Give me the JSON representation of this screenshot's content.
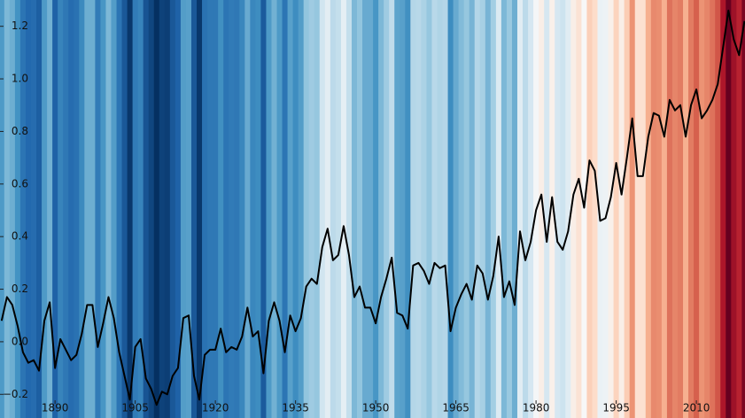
{
  "chart_data": {
    "type": "line",
    "stripes": true,
    "x": [
      1880,
      1881,
      1882,
      1883,
      1884,
      1885,
      1886,
      1887,
      1888,
      1889,
      1890,
      1891,
      1892,
      1893,
      1894,
      1895,
      1896,
      1897,
      1898,
      1899,
      1900,
      1901,
      1902,
      1903,
      1904,
      1905,
      1906,
      1907,
      1908,
      1909,
      1910,
      1911,
      1912,
      1913,
      1914,
      1915,
      1916,
      1917,
      1918,
      1919,
      1920,
      1921,
      1922,
      1923,
      1924,
      1925,
      1926,
      1927,
      1928,
      1929,
      1930,
      1931,
      1932,
      1933,
      1934,
      1935,
      1936,
      1937,
      1938,
      1939,
      1940,
      1941,
      1942,
      1943,
      1944,
      1945,
      1946,
      1947,
      1948,
      1949,
      1950,
      1951,
      1952,
      1953,
      1954,
      1955,
      1956,
      1957,
      1958,
      1959,
      1960,
      1961,
      1962,
      1963,
      1964,
      1965,
      1966,
      1967,
      1968,
      1969,
      1970,
      1971,
      1972,
      1973,
      1974,
      1975,
      1976,
      1977,
      1978,
      1979,
      1980,
      1981,
      1982,
      1983,
      1984,
      1985,
      1986,
      1987,
      1988,
      1989,
      1990,
      1991,
      1992,
      1993,
      1994,
      1995,
      1996,
      1997,
      1998,
      1999,
      2000,
      2001,
      2002,
      2003,
      2004,
      2005,
      2006,
      2007,
      2008,
      2009,
      2010,
      2011,
      2012,
      2013,
      2014,
      2015,
      2016,
      2017,
      2018,
      2019
    ],
    "values": [
      0.08,
      0.17,
      0.14,
      0.06,
      -0.04,
      -0.08,
      -0.07,
      -0.11,
      0.08,
      0.15,
      -0.1,
      0.01,
      -0.03,
      -0.07,
      -0.05,
      0.03,
      0.14,
      0.14,
      -0.02,
      0.07,
      0.17,
      0.09,
      -0.04,
      -0.13,
      -0.22,
      -0.02,
      0.01,
      -0.14,
      -0.18,
      -0.24,
      -0.19,
      -0.2,
      -0.13,
      -0.1,
      0.09,
      0.1,
      -0.13,
      -0.22,
      -0.05,
      -0.03,
      -0.03,
      0.05,
      -0.04,
      -0.02,
      -0.03,
      0.02,
      0.13,
      0.02,
      0.04,
      -0.12,
      0.08,
      0.15,
      0.08,
      -0.04,
      0.1,
      0.04,
      0.09,
      0.21,
      0.24,
      0.22,
      0.36,
      0.43,
      0.31,
      0.33,
      0.44,
      0.33,
      0.17,
      0.21,
      0.13,
      0.13,
      0.07,
      0.17,
      0.24,
      0.32,
      0.11,
      0.1,
      0.05,
      0.29,
      0.3,
      0.27,
      0.22,
      0.3,
      0.28,
      0.29,
      0.04,
      0.13,
      0.18,
      0.22,
      0.16,
      0.29,
      0.26,
      0.16,
      0.25,
      0.4,
      0.17,
      0.23,
      0.14,
      0.42,
      0.31,
      0.38,
      0.5,
      0.56,
      0.38,
      0.55,
      0.38,
      0.35,
      0.42,
      0.56,
      0.62,
      0.51,
      0.69,
      0.65,
      0.46,
      0.47,
      0.55,
      0.68,
      0.56,
      0.7,
      0.85,
      0.63,
      0.63,
      0.78,
      0.87,
      0.86,
      0.78,
      0.92,
      0.88,
      0.9,
      0.78,
      0.9,
      0.96,
      0.85,
      0.88,
      0.92,
      0.98,
      1.12,
      1.26,
      1.15,
      1.09,
      1.22
    ],
    "color": "#000000",
    "stripe_colors": [
      "#053061",
      "#2166ac",
      "#4393c3",
      "#92c5de",
      "#d1e5f0",
      "#f7f7f7",
      "#fddbc7",
      "#f4a582",
      "#d6604d",
      "#b2182b",
      "#67001f"
    ],
    "xlim": [
      1879.7,
      2019.1
    ],
    "xticks": [
      1890,
      1905,
      1920,
      1935,
      1950,
      1965,
      1980,
      1995,
      2010
    ],
    "ylim": [
      -0.29,
      1.3
    ],
    "yticks": [
      {
        "value": -0.2,
        "label": "−0.2"
      },
      {
        "value": 0,
        "label": "0.0"
      },
      0.2,
      0.4,
      0.6,
      0.8,
      {
        "value": 1,
        "label": "1.0"
      },
      1.2
    ]
  }
}
